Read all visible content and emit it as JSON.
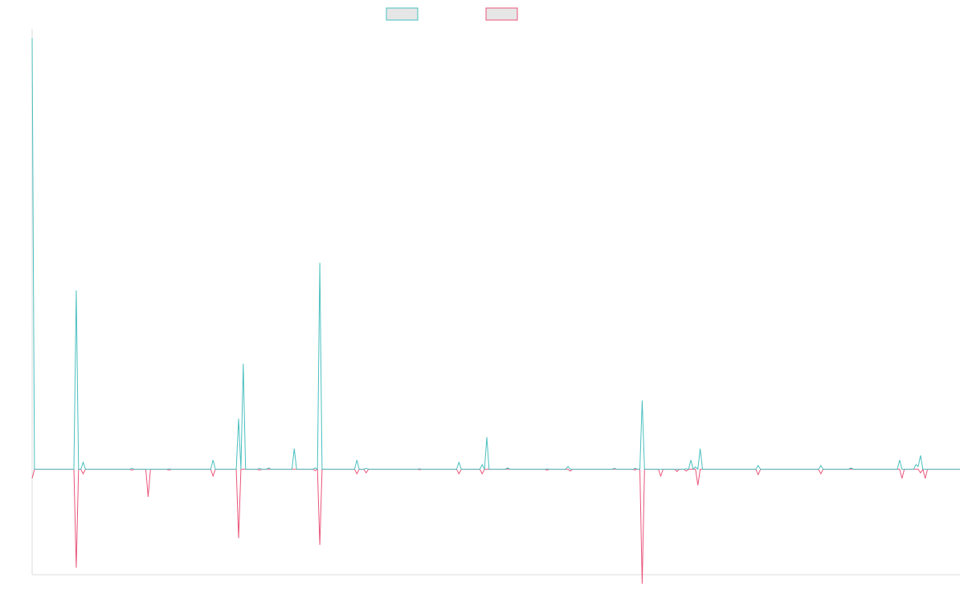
{
  "chart_data": {
    "type": "line",
    "title": "",
    "xlabel": "",
    "ylabel": "",
    "legend_position": "top-center",
    "grid": false,
    "x_count": 400,
    "ylim": [
      -23,
      96
    ],
    "baseline": 0,
    "series": [
      {
        "name": "",
        "color": "#4bbfbf",
        "legend_fill": "#e6e6e6",
        "points": [
          [
            0,
            94
          ],
          [
            1,
            0
          ],
          [
            18,
            0
          ],
          [
            19,
            39
          ],
          [
            20,
            0
          ],
          [
            21,
            0
          ],
          [
            22,
            1.5
          ],
          [
            23,
            0
          ],
          [
            42,
            0
          ],
          [
            43,
            0.2
          ],
          [
            44,
            0
          ],
          [
            58,
            0
          ],
          [
            59,
            0.1
          ],
          [
            60,
            0
          ],
          [
            77,
            0
          ],
          [
            78,
            2
          ],
          [
            79,
            0
          ],
          [
            88,
            0
          ],
          [
            89,
            11
          ],
          [
            90,
            0
          ],
          [
            91,
            23
          ],
          [
            92,
            0
          ],
          [
            97,
            0
          ],
          [
            98,
            0.2
          ],
          [
            99,
            0
          ],
          [
            101,
            0
          ],
          [
            102,
            0.3
          ],
          [
            103,
            0
          ],
          [
            112,
            0
          ],
          [
            113,
            4.5
          ],
          [
            114,
            0
          ],
          [
            121,
            0
          ],
          [
            122,
            0.3
          ],
          [
            123,
            0
          ],
          [
            124,
            45
          ],
          [
            125,
            0
          ],
          [
            139,
            0
          ],
          [
            140,
            2
          ],
          [
            141,
            0
          ],
          [
            143,
            0
          ],
          [
            144,
            0.2
          ],
          [
            145,
            0
          ],
          [
            166,
            0
          ],
          [
            167,
            0.1
          ],
          [
            168,
            0
          ],
          [
            183,
            0
          ],
          [
            184,
            1.5
          ],
          [
            185,
            0
          ],
          [
            193,
            0
          ],
          [
            194,
            1
          ],
          [
            195,
            0
          ],
          [
            196,
            7
          ],
          [
            197,
            0
          ],
          [
            204,
            0
          ],
          [
            205,
            0.3
          ],
          [
            206,
            0
          ],
          [
            221,
            0
          ],
          [
            222,
            0.1
          ],
          [
            223,
            0
          ],
          [
            230,
            0
          ],
          [
            231,
            0.6
          ],
          [
            232,
            0
          ],
          [
            250,
            0
          ],
          [
            251,
            0.2
          ],
          [
            252,
            0
          ],
          [
            259,
            0
          ],
          [
            260,
            0.2
          ],
          [
            261,
            0
          ],
          [
            262,
            0
          ],
          [
            263,
            15
          ],
          [
            264,
            0
          ],
          [
            281,
            0
          ],
          [
            282,
            0.1
          ],
          [
            283,
            0
          ],
          [
            284,
            2
          ],
          [
            285,
            0
          ],
          [
            286,
            0.5
          ],
          [
            287,
            0
          ],
          [
            288,
            4.5
          ],
          [
            289,
            0
          ],
          [
            312,
            0
          ],
          [
            313,
            0.8
          ],
          [
            314,
            0
          ],
          [
            339,
            0
          ],
          [
            340,
            0.8
          ],
          [
            341,
            0
          ],
          [
            352,
            0
          ],
          [
            353,
            0.3
          ],
          [
            354,
            0
          ],
          [
            373,
            0
          ],
          [
            374,
            2
          ],
          [
            375,
            0
          ],
          [
            380,
            0
          ],
          [
            381,
            1
          ],
          [
            382,
            0.6
          ],
          [
            383,
            3
          ],
          [
            384,
            0
          ],
          [
            400,
            0
          ]
        ]
      },
      {
        "name": "",
        "color": "#e9547a",
        "legend_fill": "#e6e6e6",
        "points": [
          [
            0,
            -2
          ],
          [
            1,
            0
          ],
          [
            18,
            0
          ],
          [
            19,
            -21.5
          ],
          [
            20,
            0
          ],
          [
            21,
            0
          ],
          [
            22,
            -1
          ],
          [
            23,
            0
          ],
          [
            42,
            0
          ],
          [
            43,
            -0.2
          ],
          [
            44,
            0
          ],
          [
            49,
            0
          ],
          [
            50,
            -6
          ],
          [
            51,
            0
          ],
          [
            58,
            0
          ],
          [
            59,
            -0.2
          ],
          [
            60,
            0
          ],
          [
            77,
            0
          ],
          [
            78,
            -1.5
          ],
          [
            79,
            0
          ],
          [
            88,
            0
          ],
          [
            89,
            -15
          ],
          [
            90,
            0
          ],
          [
            97,
            0
          ],
          [
            98,
            -0.2
          ],
          [
            99,
            0
          ],
          [
            121,
            0
          ],
          [
            122,
            -0.3
          ],
          [
            123,
            0
          ],
          [
            124,
            -16.5
          ],
          [
            125,
            0
          ],
          [
            139,
            0
          ],
          [
            140,
            -1
          ],
          [
            141,
            0
          ],
          [
            143,
            0
          ],
          [
            144,
            -0.8
          ],
          [
            145,
            0
          ],
          [
            166,
            0
          ],
          [
            167,
            -0.1
          ],
          [
            168,
            0
          ],
          [
            183,
            0
          ],
          [
            184,
            -1
          ],
          [
            185,
            0
          ],
          [
            193,
            0
          ],
          [
            194,
            -1
          ],
          [
            195,
            0
          ],
          [
            221,
            0
          ],
          [
            222,
            -0.2
          ],
          [
            223,
            0
          ],
          [
            231,
            0
          ],
          [
            232,
            -0.4
          ],
          [
            233,
            0
          ],
          [
            259,
            0
          ],
          [
            260,
            -0.2
          ],
          [
            261,
            0
          ],
          [
            270,
            0
          ],
          [
            271,
            -1.5
          ],
          [
            272,
            0
          ],
          [
            277,
            0
          ],
          [
            278,
            -0.5
          ],
          [
            279,
            0
          ],
          [
            260,
            0
          ],
          [
            261,
            0
          ],
          [
            262,
            0
          ],
          [
            263,
            -25
          ],
          [
            264,
            0
          ],
          [
            281,
            0
          ],
          [
            282,
            -0.4
          ],
          [
            283,
            0
          ],
          [
            286,
            0
          ],
          [
            287,
            -3.5
          ],
          [
            288,
            0
          ],
          [
            312,
            0
          ],
          [
            313,
            -1.2
          ],
          [
            314,
            0
          ],
          [
            339,
            0
          ],
          [
            340,
            -1
          ],
          [
            341,
            0
          ],
          [
            374,
            0
          ],
          [
            375,
            -2
          ],
          [
            376,
            0
          ],
          [
            382,
            0
          ],
          [
            383,
            -0.8
          ],
          [
            384,
            0
          ],
          [
            385,
            -2
          ],
          [
            386,
            0
          ],
          [
            400,
            0
          ]
        ]
      }
    ]
  }
}
